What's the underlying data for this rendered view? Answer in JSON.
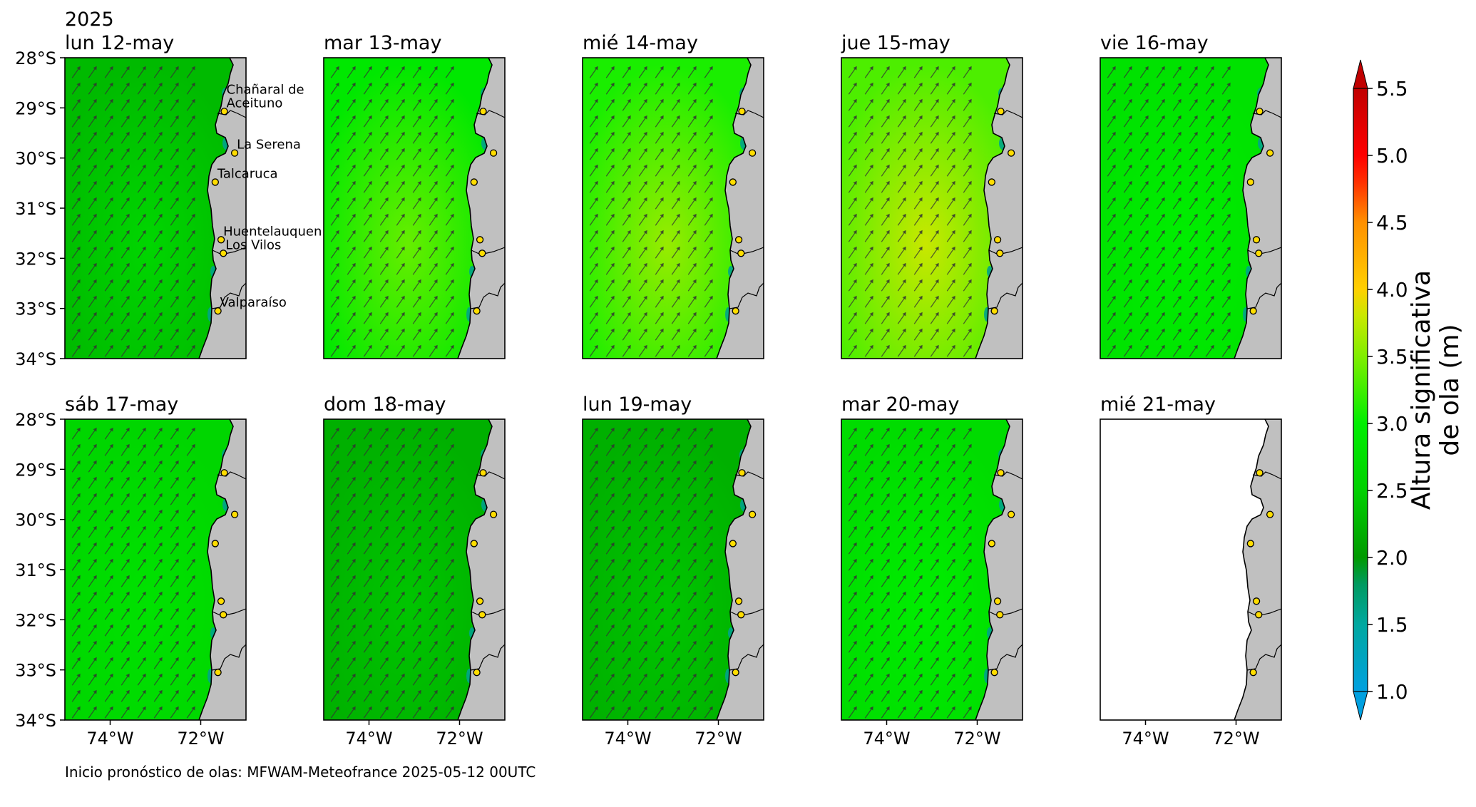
{
  "year": "2025",
  "footer_text": "Inicio pronóstico de olas: MFWAM-Meteofrance 2025-05-12 00UTC",
  "lat_ticks": [
    "28°S",
    "29°S",
    "30°S",
    "31°S",
    "32°S",
    "33°S",
    "34°S"
  ],
  "lon_ticks": [
    "74°W",
    "72°W"
  ],
  "panels": [
    {
      "title": "lun 12-may",
      "mean_height_m": 2.3,
      "max_height_m": 2.6
    },
    {
      "title": "mar 13-may",
      "mean_height_m": 2.9,
      "max_height_m": 3.4
    },
    {
      "title": "mié 14-may",
      "mean_height_m": 3.1,
      "max_height_m": 3.6
    },
    {
      "title": "jue 15-may",
      "mean_height_m": 3.3,
      "max_height_m": 3.8
    },
    {
      "title": "vie 16-may",
      "mean_height_m": 2.8,
      "max_height_m": 3.0
    },
    {
      "title": "sáb 17-may",
      "mean_height_m": 2.6,
      "max_height_m": 2.8
    },
    {
      "title": "dom 18-may",
      "mean_height_m": 2.2,
      "max_height_m": 2.4
    },
    {
      "title": "lun 19-may",
      "mean_height_m": 2.2,
      "max_height_m": 2.4
    },
    {
      "title": "mar 20-may",
      "mean_height_m": 2.7,
      "max_height_m": 3.0
    },
    {
      "title": "mié 21-may",
      "mean_height_m": null,
      "max_height_m": null
    }
  ],
  "locations": [
    {
      "name": "Chañaral de Aceituno",
      "label_lines": [
        "Chañaral de",
        "Aceituno"
      ],
      "lat": -29.07,
      "lon": -71.48
    },
    {
      "name": "La Serena",
      "label_lines": [
        "La Serena"
      ],
      "lat": -29.9,
      "lon": -71.25
    },
    {
      "name": "Talcaruca",
      "label_lines": [
        "Talcaruca"
      ],
      "lat": -30.48,
      "lon": -71.68
    },
    {
      "name": "Huentelauquen",
      "label_lines": [
        "Huentelauquen"
      ],
      "lat": -31.63,
      "lon": -71.55
    },
    {
      "name": "Los Vilos",
      "label_lines": [
        "Los Vilos"
      ],
      "lat": -31.9,
      "lon": -71.5
    },
    {
      "name": "Valparaíso",
      "label_lines": [
        "Valparaíso"
      ],
      "lat": -33.05,
      "lon": -71.62
    }
  ],
  "colorbar": {
    "label_lines": [
      "Altura significativa",
      "de ola (m)"
    ],
    "ticks": [
      "1.0",
      "1.5",
      "2.0",
      "2.5",
      "3.0",
      "3.5",
      "4.0",
      "4.5",
      "5.0",
      "5.5"
    ],
    "range": [
      1.0,
      5.5
    ],
    "extend": "both",
    "colors": {
      "1.0": "#00a0e0",
      "1.5": "#00a8a0",
      "1.8": "#009a60",
      "2.0": "#009a00",
      "2.5": "#00d000",
      "3.0": "#00ee00",
      "3.5": "#80ee00",
      "3.8": "#c8e800",
      "4.0": "#ffd000",
      "4.5": "#ff9000",
      "4.8": "#ff3000",
      "5.0": "#ff0000",
      "5.5": "#c00000"
    }
  },
  "land_color": "#c0c0c0",
  "coastline_color": "#000000",
  "marker_color": "#ffdd00"
}
